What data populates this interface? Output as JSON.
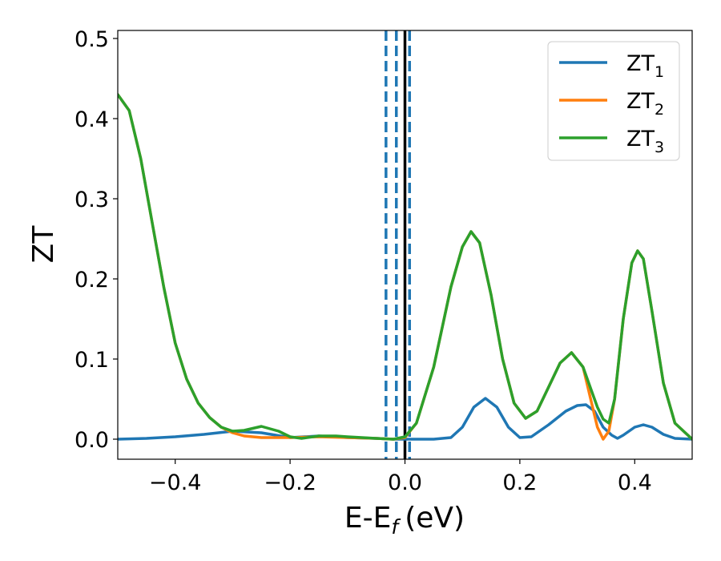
{
  "chart_data": {
    "type": "line",
    "title": "",
    "xlabel": "E-E",
    "xlabel_sub": "f",
    "xlabel_unit": "(eV)",
    "ylabel": "ZT",
    "xlim": [
      -0.5,
      0.5
    ],
    "ylim": [
      -0.025,
      0.51
    ],
    "xticks": [
      -0.4,
      -0.2,
      0.0,
      0.2,
      0.4
    ],
    "xtick_labels": [
      "−0.4",
      "−0.2",
      "0.0",
      "0.2",
      "0.4"
    ],
    "yticks": [
      0.0,
      0.1,
      0.2,
      0.3,
      0.4,
      0.5
    ],
    "ytick_labels": [
      "0.0",
      "0.1",
      "0.2",
      "0.3",
      "0.4",
      "0.5"
    ],
    "grid": false,
    "legend_position": "top-right",
    "series": [
      {
        "name": "ZT",
        "name_sub": "1",
        "color": "#1f77b4",
        "x": [
          -0.5,
          -0.45,
          -0.4,
          -0.35,
          -0.3,
          -0.25,
          -0.2,
          -0.15,
          -0.1,
          -0.05,
          -0.02,
          0.0,
          0.05,
          0.08,
          0.1,
          0.12,
          0.14,
          0.16,
          0.18,
          0.2,
          0.22,
          0.25,
          0.28,
          0.3,
          0.315,
          0.33,
          0.345,
          0.36,
          0.37,
          0.38,
          0.4,
          0.415,
          0.43,
          0.45,
          0.47,
          0.5
        ],
        "y": [
          0.0,
          0.001,
          0.003,
          0.006,
          0.01,
          0.008,
          0.002,
          0.004,
          0.002,
          0.001,
          0.0,
          0.0,
          0.0,
          0.002,
          0.015,
          0.04,
          0.051,
          0.04,
          0.015,
          0.002,
          0.003,
          0.018,
          0.035,
          0.042,
          0.043,
          0.035,
          0.015,
          0.005,
          0.001,
          0.005,
          0.015,
          0.018,
          0.015,
          0.006,
          0.001,
          0.0
        ]
      },
      {
        "name": "ZT",
        "name_sub": "2",
        "color": "#ff7f0e",
        "x": [
          -0.5,
          -0.48,
          -0.46,
          -0.44,
          -0.42,
          -0.4,
          -0.38,
          -0.36,
          -0.34,
          -0.32,
          -0.3,
          -0.28,
          -0.25,
          -0.22,
          -0.2,
          -0.15,
          -0.1,
          -0.05,
          -0.02,
          0.0,
          0.02,
          0.05,
          0.08,
          0.1,
          0.115,
          0.13,
          0.15,
          0.17,
          0.19,
          0.21,
          0.23,
          0.25,
          0.27,
          0.29,
          0.31,
          0.325,
          0.335,
          0.345,
          0.355,
          0.365,
          0.38,
          0.395,
          0.405,
          0.415,
          0.43,
          0.45,
          0.47,
          0.5
        ],
        "y": [
          0.43,
          0.41,
          0.35,
          0.27,
          0.19,
          0.12,
          0.075,
          0.045,
          0.027,
          0.015,
          0.008,
          0.004,
          0.002,
          0.002,
          0.002,
          0.003,
          0.002,
          0.001,
          0.0,
          0.002,
          0.02,
          0.09,
          0.19,
          0.24,
          0.259,
          0.245,
          0.18,
          0.1,
          0.045,
          0.026,
          0.035,
          0.065,
          0.095,
          0.108,
          0.09,
          0.045,
          0.015,
          0.0,
          0.01,
          0.05,
          0.15,
          0.22,
          0.235,
          0.225,
          0.16,
          0.07,
          0.02,
          0.0
        ]
      },
      {
        "name": "ZT",
        "name_sub": "3",
        "color": "#2ca02c",
        "x": [
          -0.5,
          -0.48,
          -0.46,
          -0.44,
          -0.42,
          -0.4,
          -0.38,
          -0.36,
          -0.34,
          -0.32,
          -0.3,
          -0.28,
          -0.25,
          -0.22,
          -0.2,
          -0.18,
          -0.15,
          -0.12,
          -0.1,
          -0.05,
          -0.02,
          0.0,
          0.02,
          0.05,
          0.08,
          0.1,
          0.115,
          0.13,
          0.15,
          0.17,
          0.19,
          0.21,
          0.23,
          0.25,
          0.27,
          0.29,
          0.31,
          0.325,
          0.335,
          0.345,
          0.355,
          0.365,
          0.38,
          0.395,
          0.405,
          0.415,
          0.43,
          0.45,
          0.47,
          0.5
        ],
        "y": [
          0.43,
          0.41,
          0.35,
          0.27,
          0.19,
          0.12,
          0.075,
          0.045,
          0.027,
          0.015,
          0.01,
          0.011,
          0.016,
          0.01,
          0.003,
          0.001,
          0.004,
          0.004,
          0.003,
          0.001,
          0.0,
          0.003,
          0.02,
          0.09,
          0.19,
          0.24,
          0.259,
          0.245,
          0.18,
          0.1,
          0.045,
          0.026,
          0.035,
          0.065,
          0.095,
          0.108,
          0.09,
          0.06,
          0.04,
          0.025,
          0.02,
          0.05,
          0.15,
          0.22,
          0.235,
          0.225,
          0.16,
          0.07,
          0.02,
          0.0
        ]
      }
    ],
    "vlines": [
      {
        "x": -0.033,
        "style": "dashed",
        "color": "#1f77b4"
      },
      {
        "x": -0.015,
        "style": "dashed",
        "color": "#1f77b4"
      },
      {
        "x": 0.008,
        "style": "dashed",
        "color": "#1f77b4"
      },
      {
        "x": 0.0,
        "style": "solid",
        "color": "#000000"
      }
    ]
  }
}
